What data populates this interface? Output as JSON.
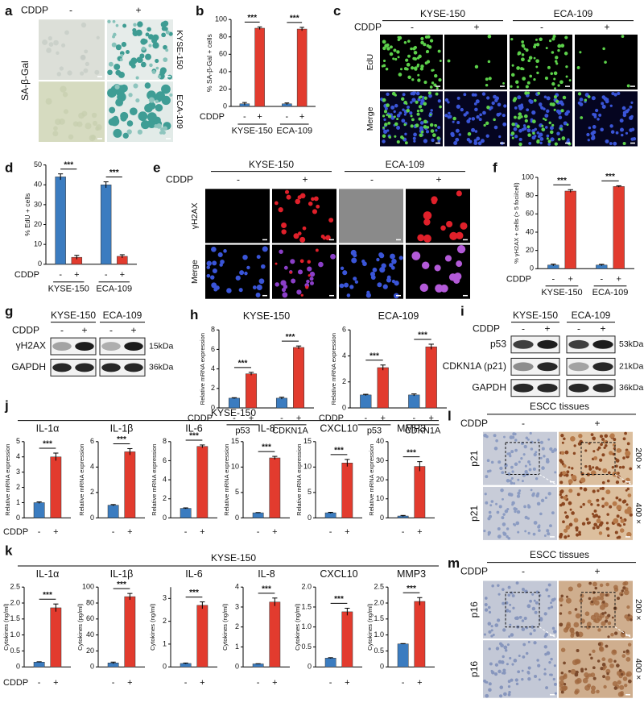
{
  "chart_data": [
    {
      "type": "bar",
      "panel": "b",
      "ylabel": "% SA-β-Gal + cells",
      "row_label": "CDDP",
      "categories": [
        "-",
        "+",
        "-",
        "+"
      ],
      "groups": [
        "KYSE-150",
        "ECA-109"
      ],
      "values": [
        3,
        90,
        3,
        89
      ],
      "errors": [
        1.5,
        1.5,
        1,
        2
      ],
      "significance": [
        "***",
        "***"
      ],
      "condition_colors": [
        "#3b7cc0",
        "#e23b2e"
      ],
      "ylim": [
        0,
        100
      ],
      "yticks": [
        0,
        20,
        40,
        60,
        80,
        100
      ]
    },
    {
      "type": "bar",
      "panel": "d",
      "ylabel": "% EdU + cells",
      "row_label": "CDDP",
      "categories": [
        "-",
        "+",
        "-",
        "+"
      ],
      "groups": [
        "KYSE-150",
        "ECA-109"
      ],
      "values": [
        44,
        3.5,
        40,
        4
      ],
      "errors": [
        1.5,
        1,
        1.5,
        0.8
      ],
      "significance": [
        "***",
        "***"
      ],
      "condition_colors": [
        "#3b7cc0",
        "#e23b2e"
      ],
      "ylim": [
        0,
        50
      ],
      "yticks": [
        0,
        10,
        20,
        30,
        40,
        50
      ]
    },
    {
      "type": "bar",
      "panel": "f",
      "ylabel": "% γH2AX + cells (> 5 foci/cell)",
      "row_label": "CDDP",
      "categories": [
        "-",
        "+",
        "-",
        "+"
      ],
      "groups": [
        "KYSE-150",
        "ECA-109"
      ],
      "values": [
        4,
        85,
        4,
        90
      ],
      "errors": [
        1,
        1.5,
        0.8,
        0.8
      ],
      "significance": [
        "***",
        "***"
      ],
      "condition_colors": [
        "#3b7cc0",
        "#e23b2e"
      ],
      "ylim": [
        0,
        100
      ],
      "yticks": [
        0,
        20,
        40,
        60,
        80,
        100
      ]
    },
    {
      "type": "bar",
      "panel": "h",
      "title": "KYSE-150",
      "ylabel": "Relative mRNA expression",
      "row_label": "CDDP",
      "categories": [
        "-",
        "+",
        "-",
        "+"
      ],
      "groups": [
        "p53",
        "CDKN1A"
      ],
      "values": [
        1,
        3.5,
        1,
        6.2
      ],
      "errors": [
        0.05,
        0.15,
        0.1,
        0.15
      ],
      "significance": [
        "***",
        "***"
      ],
      "condition_colors": [
        "#3b7cc0",
        "#e23b2e"
      ],
      "ylim": [
        0,
        8
      ],
      "yticks": [
        0,
        2,
        4,
        6,
        8
      ]
    },
    {
      "type": "bar",
      "title": "ECA-109",
      "ylabel": "Relative mRNA expression",
      "row_label": "CDDP",
      "categories": [
        "-",
        "+",
        "-",
        "+"
      ],
      "groups": [
        "p53",
        "CDKN1A"
      ],
      "values": [
        1,
        3.1,
        1,
        4.7
      ],
      "errors": [
        0.05,
        0.2,
        0.08,
        0.2
      ],
      "significance": [
        "***",
        "***"
      ],
      "condition_colors": [
        "#3b7cc0",
        "#e23b2e"
      ],
      "ylim": [
        0,
        6
      ],
      "yticks": [
        0,
        2,
        4,
        6
      ]
    },
    {
      "type": "bar",
      "title": "IL-1α",
      "ylabel": "Relative mRNA expression",
      "categories": [
        "-",
        "+"
      ],
      "values": [
        1,
        4.0
      ],
      "errors": [
        0.05,
        0.25
      ],
      "significance": [
        "***"
      ],
      "condition_colors": [
        "#3b7cc0",
        "#e23b2e"
      ],
      "ylim": [
        0,
        5
      ],
      "yticks": [
        0,
        1,
        2,
        3,
        4,
        5
      ]
    },
    {
      "type": "bar",
      "title": "IL-1β",
      "ylabel": "Relative mRNA expression",
      "categories": [
        "-",
        "+"
      ],
      "values": [
        1,
        5.2
      ],
      "errors": [
        0.05,
        0.25
      ],
      "significance": [
        "***"
      ],
      "condition_colors": [
        "#3b7cc0",
        "#e23b2e"
      ],
      "ylim": [
        0,
        6
      ],
      "yticks": [
        0,
        2,
        4,
        6
      ]
    },
    {
      "type": "bar",
      "title": "IL-6",
      "ylabel": "Relative mRNA expression",
      "categories": [
        "-",
        "+"
      ],
      "values": [
        1,
        7.5
      ],
      "errors": [
        0.05,
        0.15
      ],
      "significance": [
        "***"
      ],
      "condition_colors": [
        "#3b7cc0",
        "#e23b2e"
      ],
      "ylim": [
        0,
        8
      ],
      "yticks": [
        0,
        2,
        4,
        6,
        8
      ]
    },
    {
      "type": "bar",
      "title": "IL-8",
      "ylabel": "Relative mRNA expression",
      "categories": [
        "-",
        "+"
      ],
      "values": [
        1,
        11.8
      ],
      "errors": [
        0.05,
        0.3
      ],
      "significance": [
        "***"
      ],
      "condition_colors": [
        "#3b7cc0",
        "#e23b2e"
      ],
      "ylim": [
        0,
        15
      ],
      "yticks": [
        0,
        5,
        10,
        15
      ]
    },
    {
      "type": "bar",
      "title": "CXCL10",
      "ylabel": "Relative mRNA expression",
      "categories": [
        "-",
        "+"
      ],
      "values": [
        1,
        10.8
      ],
      "errors": [
        0.1,
        0.7
      ],
      "significance": [
        "***"
      ],
      "condition_colors": [
        "#3b7cc0",
        "#e23b2e"
      ],
      "ylim": [
        0,
        15
      ],
      "yticks": [
        0,
        5,
        10,
        15
      ]
    },
    {
      "type": "bar",
      "title": "MMP3",
      "ylabel": "Relative mRNA expression",
      "categories": [
        "-",
        "+"
      ],
      "values": [
        1,
        27
      ],
      "errors": [
        0.3,
        2.5
      ],
      "significance": [
        "***"
      ],
      "condition_colors": [
        "#3b7cc0",
        "#e23b2e"
      ],
      "ylim": [
        0,
        40
      ],
      "yticks": [
        0,
        10,
        20,
        30,
        40
      ]
    },
    {
      "type": "bar",
      "title": "IL-1α",
      "ylabel": "Cytokines (ng/ml)",
      "categories": [
        "-",
        "+"
      ],
      "values": [
        0.15,
        1.85
      ],
      "errors": [
        0.01,
        0.12
      ],
      "significance": [
        "***"
      ],
      "condition_colors": [
        "#3b7cc0",
        "#e23b2e"
      ],
      "ylim": [
        0,
        2.5
      ],
      "yticks": [
        0,
        0.5,
        {
          "value": 1,
          "label": "1.0"
        },
        1.5,
        {
          "value": 2,
          "label": "2.0"
        },
        2.5
      ]
    },
    {
      "type": "bar",
      "title": "IL-1β",
      "ylabel": "Cytokines (pg/ml)",
      "categories": [
        "-",
        "+"
      ],
      "values": [
        5,
        88
      ],
      "errors": [
        1,
        4
      ],
      "significance": [
        "***"
      ],
      "condition_colors": [
        "#3b7cc0",
        "#e23b2e"
      ],
      "ylim": [
        0,
        100
      ],
      "yticks": [
        0,
        20,
        40,
        60,
        80,
        100
      ]
    },
    {
      "type": "bar",
      "title": "IL-6",
      "ylabel": "Cytokines (ng/ml)",
      "categories": [
        "-",
        "+"
      ],
      "values": [
        0.15,
        2.7
      ],
      "errors": [
        0.02,
        0.15
      ],
      "significance": [
        "***"
      ],
      "condition_colors": [
        "#3b7cc0",
        "#e23b2e"
      ],
      "ylim": [
        0,
        3.5
      ],
      "yticks": [
        0,
        1,
        2,
        3
      ]
    },
    {
      "type": "bar",
      "title": "IL-8",
      "ylabel": "Cytokines (ng/ml)",
      "categories": [
        "-",
        "+"
      ],
      "values": [
        0.15,
        3.25
      ],
      "errors": [
        0.01,
        0.2
      ],
      "significance": [
        "***"
      ],
      "condition_colors": [
        "#3b7cc0",
        "#e23b2e"
      ],
      "ylim": [
        0,
        4
      ],
      "yticks": [
        0,
        1,
        2,
        3,
        4
      ]
    },
    {
      "type": "bar",
      "title": "CXCL10",
      "ylabel": "Cytokines (ng/ml)",
      "categories": [
        "-",
        "+"
      ],
      "values": [
        0.22,
        1.38
      ],
      "errors": [
        0.01,
        0.09
      ],
      "significance": [
        "***"
      ],
      "condition_colors": [
        "#3b7cc0",
        "#e23b2e"
      ],
      "ylim": [
        0,
        2
      ],
      "yticks": [
        0,
        0.5,
        {
          "value": 1,
          "label": "1.0"
        },
        1.5,
        {
          "value": 2,
          "label": "2.0"
        }
      ]
    },
    {
      "type": "bar",
      "title": "MMP3",
      "ylabel": "Cytokines (ng/ml)",
      "categories": [
        "-",
        "+"
      ],
      "values": [
        0.72,
        2.05
      ],
      "errors": [
        0.01,
        0.12
      ],
      "significance": [
        "***"
      ],
      "condition_colors": [
        "#3b7cc0",
        "#e23b2e"
      ],
      "ylim": [
        0,
        2.5
      ],
      "yticks": [
        0,
        0.5,
        {
          "value": 1,
          "label": "1.0"
        },
        1.5,
        {
          "value": 2,
          "label": "2.0"
        },
        2.5
      ]
    }
  ],
  "panels": {
    "a": {
      "label": "a",
      "row_label": "CDDP",
      "columns": [
        "-",
        "+"
      ],
      "side_label": "SA-β-Gal",
      "rows": [
        "KYSE-150",
        "ECA-109"
      ]
    },
    "c": {
      "label": "c",
      "row_label": "CDDP",
      "groups": [
        "KYSE-150",
        "ECA-109"
      ],
      "columns": [
        "-",
        "+",
        "-",
        "+"
      ],
      "rows": [
        "EdU",
        "Merge"
      ]
    },
    "e": {
      "label": "e",
      "row_label": "CDDP",
      "groups": [
        "KYSE-150",
        "ECA-109"
      ],
      "columns": [
        "-",
        "+",
        "-",
        "+"
      ],
      "rows": [
        "γH2AX",
        "Merge"
      ]
    },
    "g": {
      "label": "g",
      "row_label": "CDDP",
      "groups": [
        "KYSE-150",
        "ECA-109"
      ],
      "columns": [
        "-",
        "+",
        "-",
        "+"
      ],
      "rows": [
        "γH2AX",
        "GAPDH"
      ],
      "sizes": [
        "15kDa",
        "36kDa"
      ]
    },
    "i": {
      "label": "i",
      "row_label": "CDDP",
      "groups": [
        "KYSE-150",
        "ECA-109"
      ],
      "columns": [
        "-",
        "+",
        "-",
        "+"
      ],
      "rows": [
        "p53",
        "CDKN1A (p21)",
        "GAPDH"
      ],
      "sizes": [
        "53kDa",
        "21kDa",
        "36kDa"
      ]
    },
    "j": {
      "label": "j",
      "title": "KYSE-150",
      "row_label": "CDDP"
    },
    "k": {
      "label": "k",
      "title": "KYSE-150",
      "row_label": "CDDP"
    },
    "l": {
      "label": "l",
      "title": "ESCC tissues",
      "row_label": "CDDP",
      "columns": [
        "-",
        "+"
      ],
      "rows": [
        "p21",
        "p21"
      ],
      "magnifications": [
        "200 ×",
        "400 ×"
      ]
    },
    "m": {
      "label": "m",
      "title": "ESCC tissues",
      "row_label": "CDDP",
      "columns": [
        "-",
        "+"
      ],
      "rows": [
        "p16",
        "p16"
      ],
      "magnifications": [
        "200 ×",
        "400 ×"
      ]
    }
  }
}
